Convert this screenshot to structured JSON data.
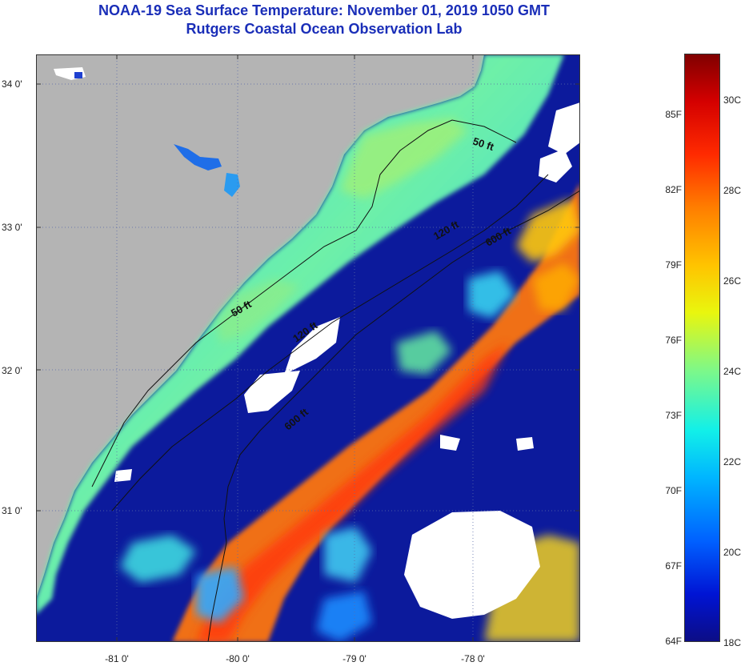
{
  "header": {
    "title_line1": "NOAA-19 Sea Surface Temperature:  November 01, 2019 1050 GMT",
    "title_line2": "Rutgers Coastal Ocean Observation Lab"
  },
  "map": {
    "lat_labels": [
      "34 0'",
      "33 0'",
      "32 0'",
      "31 0'"
    ],
    "lon_labels": [
      "-81 0'",
      "-80 0'",
      "-79 0'",
      "-78 0'"
    ],
    "contour_labels": [
      "50 ft",
      "120 ft",
      "600 ft",
      "50 ft",
      "120 ft",
      "600 ft"
    ],
    "colors": {
      "land": "#b4b4b4",
      "deep_blue": "#0c1a9c",
      "cloud": "#ffffff",
      "shelf": "#4fe6c4"
    }
  },
  "colorbar": {
    "fahrenheit_labels": [
      "85F",
      "82F",
      "79F",
      "76F",
      "73F",
      "70F",
      "67F",
      "64F"
    ],
    "celsius_labels": [
      "30C",
      "28C",
      "26C",
      "24C",
      "22C",
      "20C",
      "18C"
    ]
  }
}
